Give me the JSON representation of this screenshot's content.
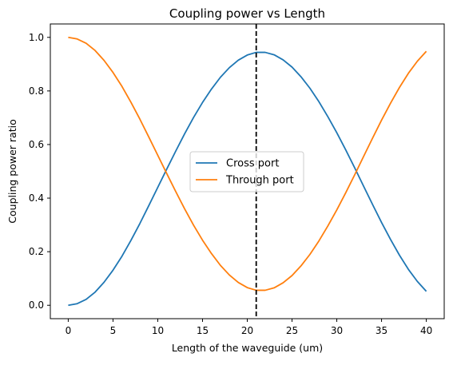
{
  "chart_data": {
    "type": "line",
    "title": "Coupling power vs Length",
    "xlabel": "Length of the waveguide (um)",
    "ylabel": "Coupling power ratio",
    "xlim": [
      -2,
      42
    ],
    "ylim": [
      -0.05,
      1.05
    ],
    "xticks": [
      "0",
      "5",
      "10",
      "15",
      "20",
      "25",
      "30",
      "35",
      "40"
    ],
    "yticks": [
      "0.0",
      "0.2",
      "0.4",
      "0.6",
      "0.8",
      "1.0"
    ],
    "grid": false,
    "legend_position": "center",
    "series": [
      {
        "name": "Cross port",
        "color": "#1f77b4",
        "x": [
          0,
          1,
          2,
          3,
          4,
          5,
          6,
          7,
          8,
          9,
          10,
          11,
          12,
          13,
          14,
          15,
          16,
          17,
          18,
          19,
          20,
          21,
          22,
          23,
          24,
          25,
          26,
          27,
          28,
          29,
          30,
          31,
          32,
          33,
          34,
          35,
          36,
          37,
          38,
          39,
          40
        ],
        "y": [
          0.0,
          0.006,
          0.022,
          0.049,
          0.086,
          0.131,
          0.183,
          0.242,
          0.305,
          0.372,
          0.44,
          0.508,
          0.575,
          0.64,
          0.701,
          0.757,
          0.807,
          0.851,
          0.887,
          0.915,
          0.934,
          0.944,
          0.944,
          0.935,
          0.916,
          0.889,
          0.853,
          0.81,
          0.76,
          0.704,
          0.644,
          0.58,
          0.513,
          0.444,
          0.376,
          0.309,
          0.246,
          0.187,
          0.134,
          0.089,
          0.052
        ]
      },
      {
        "name": "Through port",
        "color": "#ff7f0e",
        "x": [
          0,
          1,
          2,
          3,
          4,
          5,
          6,
          7,
          8,
          9,
          10,
          11,
          12,
          13,
          14,
          15,
          16,
          17,
          18,
          19,
          20,
          21,
          22,
          23,
          24,
          25,
          26,
          27,
          28,
          29,
          30,
          31,
          32,
          33,
          34,
          35,
          36,
          37,
          38,
          39,
          40
        ],
        "y": [
          1.0,
          0.994,
          0.978,
          0.951,
          0.914,
          0.869,
          0.817,
          0.758,
          0.695,
          0.628,
          0.56,
          0.492,
          0.425,
          0.36,
          0.299,
          0.243,
          0.193,
          0.149,
          0.113,
          0.085,
          0.066,
          0.056,
          0.056,
          0.065,
          0.084,
          0.111,
          0.147,
          0.19,
          0.24,
          0.296,
          0.356,
          0.42,
          0.487,
          0.556,
          0.624,
          0.691,
          0.754,
          0.813,
          0.866,
          0.911,
          0.948
        ]
      }
    ],
    "vline": {
      "x": 21,
      "style": "dashed",
      "color": "#000000"
    }
  }
}
